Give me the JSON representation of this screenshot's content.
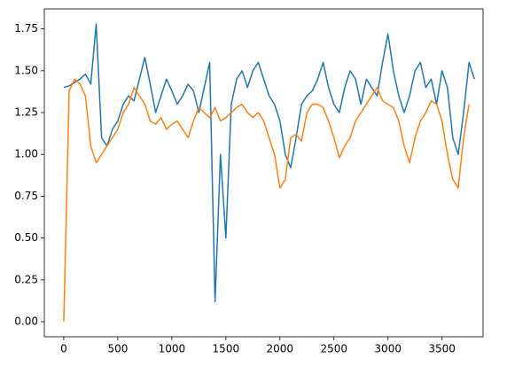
{
  "chart_data": {
    "type": "line",
    "x": [
      0,
      50,
      100,
      150,
      200,
      250,
      300,
      350,
      400,
      450,
      500,
      550,
      600,
      650,
      700,
      750,
      800,
      850,
      900,
      950,
      1000,
      1050,
      1100,
      1150,
      1200,
      1250,
      1300,
      1350,
      1400,
      1450,
      1500,
      1550,
      1600,
      1650,
      1700,
      1750,
      1800,
      1850,
      1900,
      1950,
      2000,
      2050,
      2100,
      2150,
      2200,
      2250,
      2300,
      2350,
      2400,
      2450,
      2500,
      2550,
      2600,
      2650,
      2700,
      2750,
      2800,
      2850,
      2900,
      2950,
      3000,
      3050,
      3100,
      3150,
      3200,
      3250,
      3300,
      3350,
      3400,
      3450,
      3500,
      3550,
      3600,
      3650,
      3700,
      3750,
      3800
    ],
    "series": [
      {
        "color": "#1f77b4",
        "values": [
          1.4,
          1.41,
          1.43,
          1.45,
          1.48,
          1.42,
          1.78,
          1.1,
          1.05,
          1.15,
          1.2,
          1.3,
          1.35,
          1.32,
          1.45,
          1.58,
          1.42,
          1.25,
          1.35,
          1.45,
          1.38,
          1.3,
          1.35,
          1.42,
          1.38,
          1.25,
          1.4,
          1.55,
          0.12,
          1.0,
          0.5,
          1.3,
          1.45,
          1.5,
          1.4,
          1.5,
          1.55,
          1.45,
          1.35,
          1.3,
          1.2,
          1.0,
          0.92,
          1.1,
          1.3,
          1.35,
          1.38,
          1.45,
          1.55,
          1.4,
          1.3,
          1.25,
          1.4,
          1.5,
          1.45,
          1.3,
          1.45,
          1.4,
          1.35,
          1.55,
          1.72,
          1.5,
          1.35,
          1.25,
          1.35,
          1.5,
          1.55,
          1.4,
          1.45,
          1.3,
          1.5,
          1.4,
          1.1,
          1.0,
          1.25,
          1.55,
          1.45
        ]
      },
      {
        "color": "#ff7f0e",
        "values": [
          0.0,
          1.38,
          1.45,
          1.42,
          1.35,
          1.05,
          0.95,
          1.0,
          1.05,
          1.1,
          1.15,
          1.25,
          1.3,
          1.4,
          1.35,
          1.3,
          1.2,
          1.18,
          1.22,
          1.15,
          1.18,
          1.2,
          1.15,
          1.1,
          1.2,
          1.28,
          1.25,
          1.22,
          1.28,
          1.2,
          1.22,
          1.25,
          1.28,
          1.3,
          1.25,
          1.22,
          1.25,
          1.2,
          1.1,
          1.0,
          0.8,
          0.85,
          1.1,
          1.12,
          1.08,
          1.25,
          1.3,
          1.3,
          1.28,
          1.2,
          1.1,
          0.98,
          1.05,
          1.1,
          1.2,
          1.25,
          1.3,
          1.35,
          1.4,
          1.32,
          1.3,
          1.28,
          1.2,
          1.05,
          0.95,
          1.1,
          1.2,
          1.25,
          1.32,
          1.3,
          1.2,
          1.0,
          0.85,
          0.8,
          1.1,
          1.3,
          null
        ]
      }
    ],
    "xlim": [
      -180,
      3880
    ],
    "ylim": [
      -0.09,
      1.87
    ],
    "xticks": [
      0,
      500,
      1000,
      1500,
      2000,
      2500,
      3000,
      3500
    ],
    "yticks": [
      {
        "value": 0,
        "label": "0.00"
      },
      {
        "value": 0.25,
        "label": "0.25"
      },
      {
        "value": 0.5,
        "label": "0.50"
      },
      {
        "value": 0.75,
        "label": "0.75"
      },
      {
        "value": 1,
        "label": "1.00"
      },
      {
        "value": 1.25,
        "label": "1.25"
      },
      {
        "value": 1.5,
        "label": "1.50"
      },
      {
        "value": 1.75,
        "label": "1.75"
      }
    ]
  }
}
